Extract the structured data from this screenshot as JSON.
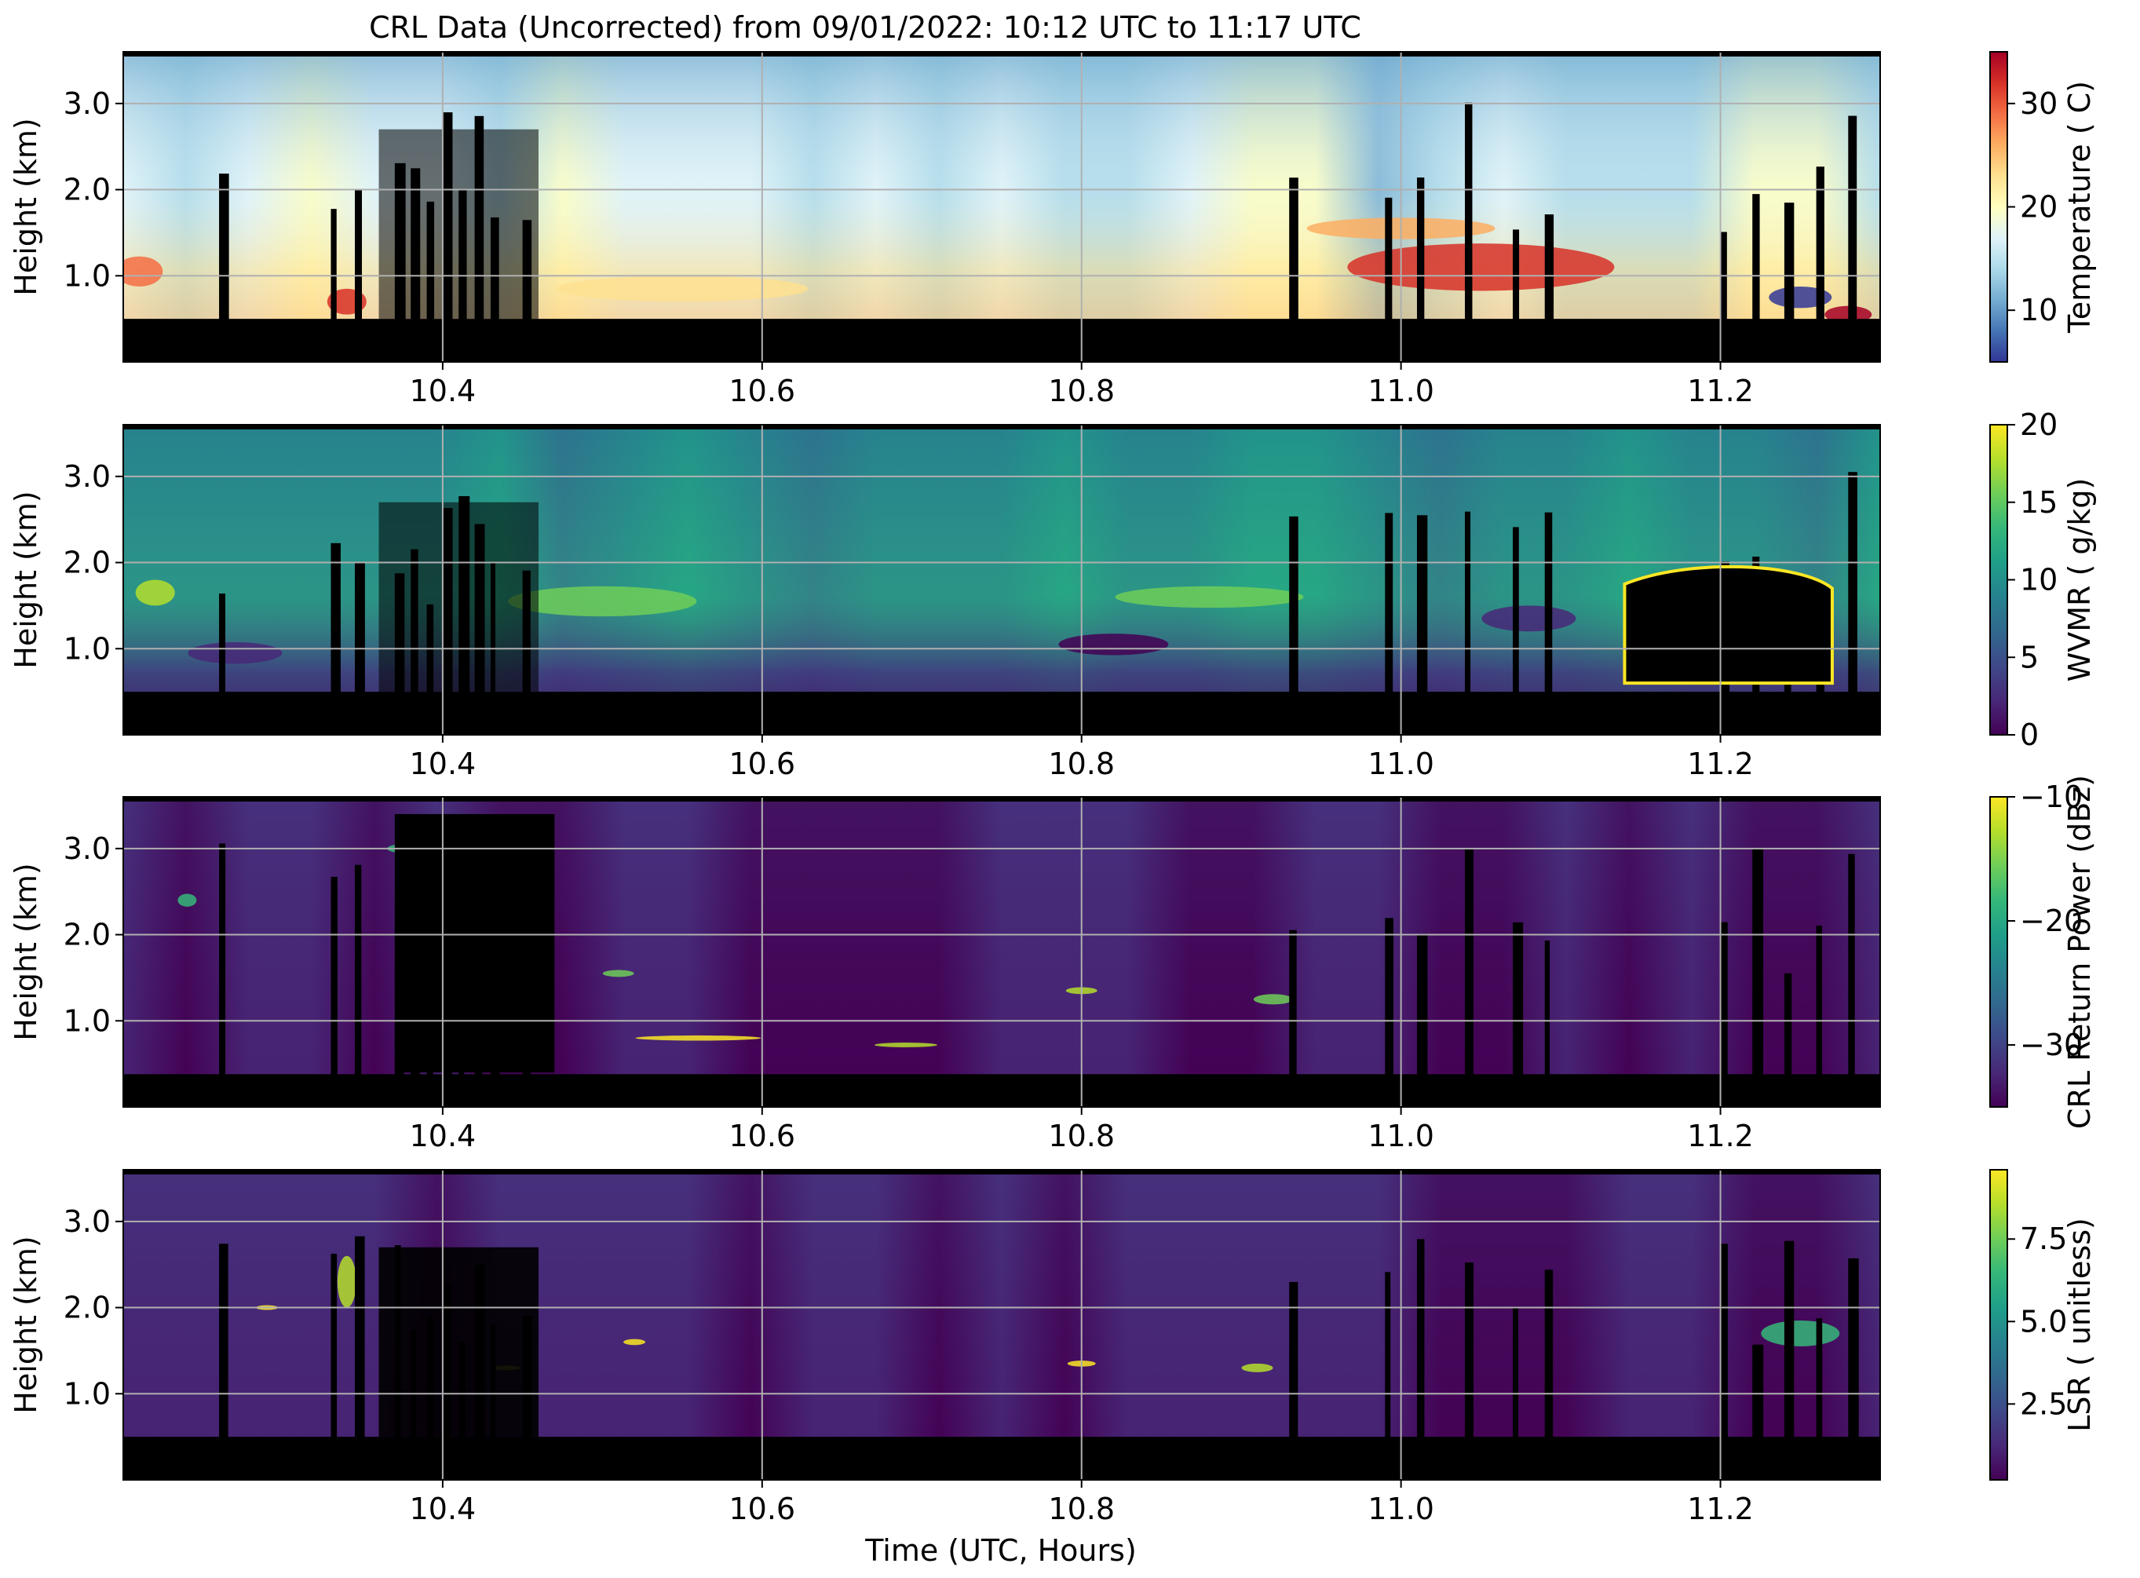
{
  "title": "CRL Data (Uncorrected) from 09/01/2022: 10:12 UTC to 11:17 UTC",
  "xlabel": "Time (UTC, Hours)",
  "chart_data": [
    {
      "type": "heatmap",
      "ylabel": "Height (km)",
      "xlim": [
        10.2,
        11.3
      ],
      "ylim": [
        0,
        3.6
      ],
      "xticks": [
        "10.4",
        "10.6",
        "10.8",
        "11.0",
        "11.2"
      ],
      "xtick_values": [
        10.4,
        10.6,
        10.8,
        11.0,
        11.2
      ],
      "yticks": [
        "1.0",
        "2.0",
        "3.0"
      ],
      "ytick_values": [
        1.0,
        2.0,
        3.0
      ],
      "grid": true,
      "colormap": "RdYlBu_r",
      "colors": [
        "#313695",
        "#4575b4",
        "#74add1",
        "#abd9e9",
        "#e0f3f8",
        "#ffffbf",
        "#fee090",
        "#fdae61",
        "#f46d43",
        "#d73027",
        "#a50026"
      ],
      "colorbar": {
        "label": "Temperature ( C)",
        "range": [
          5,
          35
        ],
        "ticks": [
          "10",
          "20",
          "30"
        ],
        "tick_values": [
          10,
          20,
          30
        ]
      }
    },
    {
      "type": "heatmap",
      "ylabel": "Height (km)",
      "xlim": [
        10.2,
        11.3
      ],
      "ylim": [
        0,
        3.6
      ],
      "xticks": [
        "10.4",
        "10.6",
        "10.8",
        "11.0",
        "11.2"
      ],
      "xtick_values": [
        10.4,
        10.6,
        10.8,
        11.0,
        11.2
      ],
      "yticks": [
        "1.0",
        "2.0",
        "3.0"
      ],
      "ytick_values": [
        1.0,
        2.0,
        3.0
      ],
      "grid": true,
      "colormap": "viridis",
      "colors": [
        "#440154",
        "#482878",
        "#3e4989",
        "#31688e",
        "#26828e",
        "#1f9e89",
        "#35b779",
        "#6ece58",
        "#b5de2b",
        "#fde725"
      ],
      "colorbar": {
        "label": "WVMR ( g/kg)",
        "range": [
          0,
          20
        ],
        "ticks": [
          "0",
          "5",
          "10",
          "15",
          "20"
        ],
        "tick_values": [
          0,
          5,
          10,
          15,
          20
        ]
      }
    },
    {
      "type": "heatmap",
      "ylabel": "Height (km)",
      "xlim": [
        10.2,
        11.3
      ],
      "ylim": [
        0,
        3.6
      ],
      "xticks": [
        "10.4",
        "10.6",
        "10.8",
        "11.0",
        "11.2"
      ],
      "xtick_values": [
        10.4,
        10.6,
        10.8,
        11.0,
        11.2
      ],
      "yticks": [
        "1.0",
        "2.0",
        "3.0"
      ],
      "ytick_values": [
        1.0,
        2.0,
        3.0
      ],
      "grid": true,
      "colormap": "viridis",
      "colors": [
        "#440154",
        "#482878",
        "#3e4989",
        "#31688e",
        "#26828e",
        "#1f9e89",
        "#35b779",
        "#6ece58",
        "#b5de2b",
        "#fde725"
      ],
      "colorbar": {
        "label": "CRL Return Power (dBz)",
        "range": [
          -35,
          -10
        ],
        "ticks": [
          "−10",
          "−20",
          "−30"
        ],
        "tick_values": [
          -10,
          -20,
          -30
        ]
      }
    },
    {
      "type": "heatmap",
      "ylabel": "Height (km)",
      "xlim": [
        10.2,
        11.3
      ],
      "ylim": [
        0,
        3.6
      ],
      "xticks": [
        "10.4",
        "10.6",
        "10.8",
        "11.0",
        "11.2"
      ],
      "xtick_values": [
        10.4,
        10.6,
        10.8,
        11.0,
        11.2
      ],
      "yticks": [
        "1.0",
        "2.0",
        "3.0"
      ],
      "ytick_values": [
        1.0,
        2.0,
        3.0
      ],
      "grid": true,
      "colormap": "viridis",
      "colors": [
        "#440154",
        "#482878",
        "#3e4989",
        "#31688e",
        "#26828e",
        "#1f9e89",
        "#35b779",
        "#6ece58",
        "#b5de2b",
        "#fde725"
      ],
      "colorbar": {
        "label": "LSR ( unitless)",
        "range": [
          0.2,
          9.6
        ],
        "ticks": [
          "2.5",
          "5.0",
          "7.5"
        ],
        "tick_values": [
          2.5,
          5.0,
          7.5
        ]
      }
    }
  ]
}
